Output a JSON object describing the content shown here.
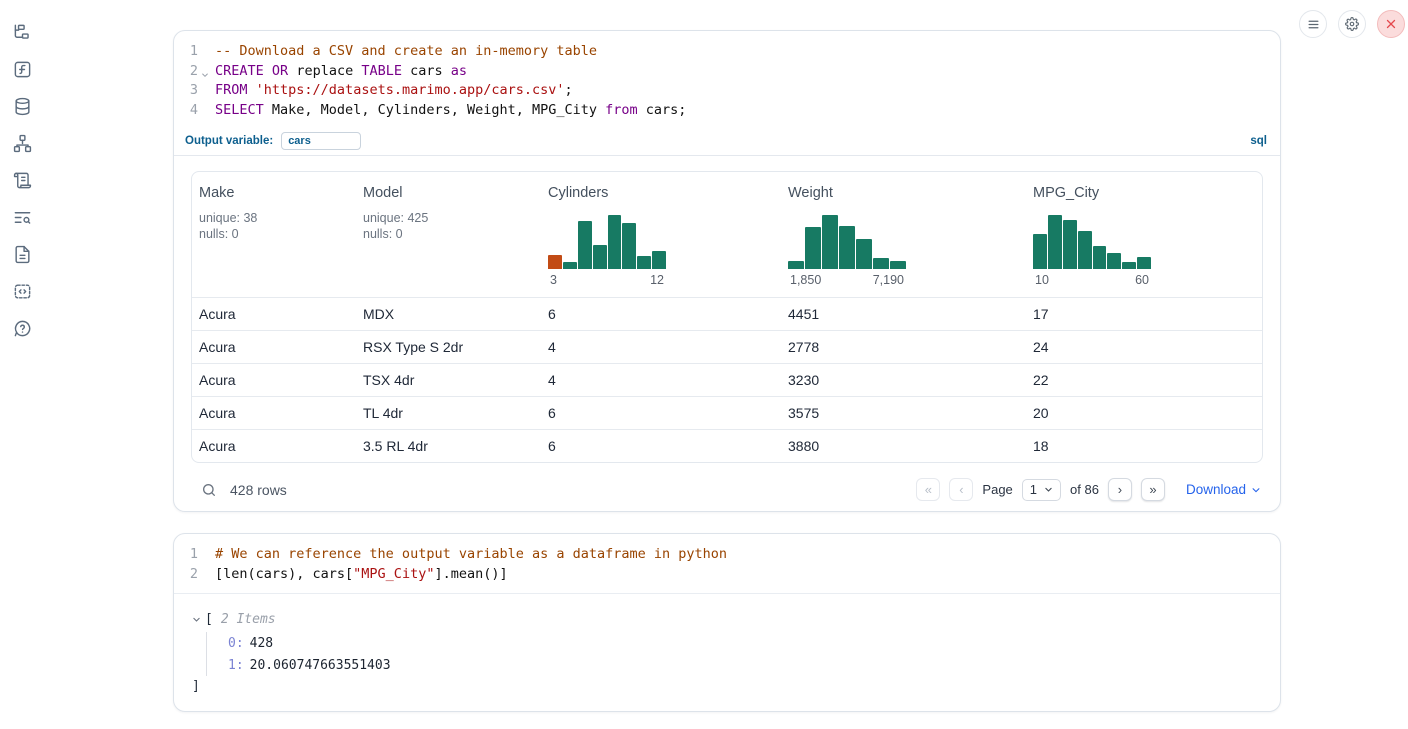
{
  "colors": {
    "hist_teal": "#177a63",
    "hist_orange": "#c24b15",
    "sql_accent_blue": "#0d5f8e",
    "download_blue": "#2563eb",
    "close_red": "#e5484d"
  },
  "sidebar": {
    "icons": [
      "file-tree",
      "function-square",
      "database",
      "network",
      "scroll-script",
      "text-search",
      "document",
      "snippets",
      "help-chat"
    ]
  },
  "sql_cell": {
    "line_numbers": [
      "1",
      "2",
      "3",
      "4"
    ],
    "code": {
      "l1_comment": "-- Download a CSV and create an in-memory table",
      "l2_k1": "CREATE",
      "l2_p1": " ",
      "l2_k2": "OR",
      "l2_p2": " replace ",
      "l2_k3": "TABLE",
      "l2_p3": " cars ",
      "l2_k4": "as",
      "l3_k1": "FROM",
      "l3_p1": " ",
      "l3_s1": "'https://datasets.marimo.app/cars.csv'",
      "l3_p2": ";",
      "l4_k1": "SELECT",
      "l4_p1": " Make, Model, Cylinders, Weight, MPG_City ",
      "l4_k2": "from",
      "l4_p2": " cars;"
    },
    "output_variable_label": "Output variable:",
    "output_variable_value": "cars",
    "language_badge": "sql"
  },
  "table": {
    "columns": [
      {
        "name": "Make",
        "stat1": "unique: 38",
        "stat2": "nulls: 0"
      },
      {
        "name": "Model",
        "stat1": "unique: 425",
        "stat2": "nulls: 0"
      },
      {
        "name": "Cylinders",
        "hist_min": "3",
        "hist_max": "12"
      },
      {
        "name": "Weight",
        "hist_min": "1,850",
        "hist_max": "7,190"
      },
      {
        "name": "MPG_City",
        "hist_min": "10",
        "hist_max": "60"
      }
    ],
    "rows": [
      [
        "Acura",
        "MDX",
        "6",
        "4451",
        "17"
      ],
      [
        "Acura",
        "RSX Type S 2dr",
        "4",
        "2778",
        "24"
      ],
      [
        "Acura",
        "TSX 4dr",
        "4",
        "3230",
        "22"
      ],
      [
        "Acura",
        "TL 4dr",
        "6",
        "3575",
        "20"
      ],
      [
        "Acura",
        "3.5 RL 4dr",
        "6",
        "3880",
        "18"
      ]
    ],
    "footer": {
      "row_count": "428 rows",
      "first_page": "«",
      "prev_page": "‹",
      "page_label": "Page",
      "page_value": "1",
      "of_label": "of 86",
      "next_page": "›",
      "last_page": "»",
      "download_label": "Download"
    }
  },
  "python_cell": {
    "line_numbers": [
      "1",
      "2"
    ],
    "code": {
      "l1_comment": "# We can reference the output variable as a dataframe in python",
      "l2_p1": "[len(cars), cars[",
      "l2_s1": "\"MPG_City\"",
      "l2_p2": "].mean()]"
    }
  },
  "python_output": {
    "open_bracket": "[",
    "items_label": "2 Items",
    "entries": [
      {
        "key": "0:",
        "value": "428"
      },
      {
        "key": "1:",
        "value": "20.060747663551403"
      }
    ],
    "close_bracket": "]"
  },
  "chart_data": [
    {
      "type": "bar",
      "title": "Cylinders histogram",
      "x_range": [
        3,
        12
      ],
      "bars": [
        0.26,
        0.13,
        0.88,
        0.45,
        1.0,
        0.84,
        0.24,
        0.33
      ],
      "highlight_first": true,
      "xlabel_min": "3",
      "xlabel_max": "12"
    },
    {
      "type": "bar",
      "title": "Weight histogram",
      "x_range": [
        1850,
        7190
      ],
      "bars": [
        0.14,
        0.78,
        1.0,
        0.8,
        0.55,
        0.2,
        0.14
      ],
      "highlight_first": false,
      "xlabel_min": "1,850",
      "xlabel_max": "7,190"
    },
    {
      "type": "bar",
      "title": "MPG_City histogram",
      "x_range": [
        10,
        60
      ],
      "bars": [
        0.65,
        1.0,
        0.9,
        0.7,
        0.42,
        0.3,
        0.13,
        0.22
      ],
      "highlight_first": false,
      "xlabel_min": "10",
      "xlabel_max": "60"
    }
  ]
}
